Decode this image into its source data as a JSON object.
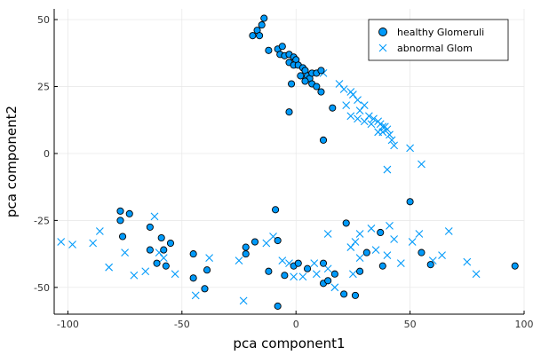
{
  "chart_data": {
    "type": "scatter",
    "title": "",
    "xlabel": "pca component1",
    "ylabel": "pca component2",
    "xlim": [
      -106,
      100
    ],
    "ylim": [
      -60,
      54
    ],
    "xticks": [
      -100,
      -50,
      0,
      50,
      100
    ],
    "yticks": [
      -50,
      -25,
      0,
      25,
      50
    ],
    "grid": true,
    "legend_position": "top-right",
    "series": [
      {
        "name": "healthy Glomeruli",
        "marker": "circle",
        "color": "#009AFA",
        "points": [
          [
            -14,
            50.5
          ],
          [
            -15,
            48
          ],
          [
            -17,
            46
          ],
          [
            -16,
            44
          ],
          [
            -19,
            44
          ],
          [
            -12,
            38.5
          ],
          [
            -8,
            39
          ],
          [
            -6,
            40
          ],
          [
            -7,
            37
          ],
          [
            -5,
            36.5
          ],
          [
            -3,
            37
          ],
          [
            -1,
            36
          ],
          [
            0,
            35
          ],
          [
            -3,
            34
          ],
          [
            -1,
            33
          ],
          [
            1,
            33
          ],
          [
            3,
            32
          ],
          [
            4,
            31
          ],
          [
            2,
            29
          ],
          [
            5,
            29
          ],
          [
            6,
            28
          ],
          [
            7,
            30
          ],
          [
            9,
            30
          ],
          [
            11,
            31
          ],
          [
            4,
            27
          ],
          [
            7,
            26
          ],
          [
            9,
            25
          ],
          [
            -2,
            26
          ],
          [
            11,
            23
          ],
          [
            16,
            17
          ],
          [
            -3,
            15.5
          ],
          [
            12,
            5
          ],
          [
            -77,
            -21.5
          ],
          [
            -73,
            -22.5
          ],
          [
            -77,
            -25
          ],
          [
            -76,
            -31
          ],
          [
            -64,
            -27.5
          ],
          [
            -59,
            -31.5
          ],
          [
            -55,
            -33.5
          ],
          [
            -58,
            -36
          ],
          [
            -64,
            -36
          ],
          [
            -61,
            -41
          ],
          [
            -57,
            -42
          ],
          [
            -45,
            -37.5
          ],
          [
            -39,
            -43.5
          ],
          [
            -45,
            -46.5
          ],
          [
            -40,
            -50.5
          ],
          [
            -22,
            -35
          ],
          [
            -18,
            -33
          ],
          [
            -22,
            -37.5
          ],
          [
            -9,
            -21
          ],
          [
            -8,
            -32.5
          ],
          [
            -12,
            -44
          ],
          [
            -5,
            -45.5
          ],
          [
            -1,
            -42
          ],
          [
            1,
            -41
          ],
          [
            -8,
            -57
          ],
          [
            5,
            -43
          ],
          [
            12,
            -41
          ],
          [
            17,
            -45
          ],
          [
            22,
            -26
          ],
          [
            37,
            -29.5
          ],
          [
            12,
            -48.5
          ],
          [
            14,
            -47.5
          ],
          [
            21,
            -52.5
          ],
          [
            26,
            -53
          ],
          [
            28,
            -44
          ],
          [
            31,
            -37
          ],
          [
            38,
            -42
          ],
          [
            50,
            -18
          ],
          [
            55,
            -37
          ],
          [
            59,
            -41.5
          ],
          [
            96,
            -42
          ]
        ]
      },
      {
        "name": "abnormal Glom",
        "marker": "x",
        "color": "#009AFA",
        "points": [
          [
            12,
            30
          ],
          [
            19,
            26
          ],
          [
            21,
            24
          ],
          [
            24,
            23
          ],
          [
            25,
            22
          ],
          [
            27,
            20
          ],
          [
            22,
            18
          ],
          [
            30,
            18
          ],
          [
            28,
            16
          ],
          [
            24,
            14
          ],
          [
            27,
            13
          ],
          [
            32,
            14
          ],
          [
            30,
            12
          ],
          [
            34,
            13
          ],
          [
            36,
            12
          ],
          [
            37,
            11
          ],
          [
            39,
            10
          ],
          [
            38,
            8
          ],
          [
            40,
            9
          ],
          [
            41,
            7
          ],
          [
            42,
            5
          ],
          [
            43,
            3
          ],
          [
            50,
            2
          ],
          [
            55,
            -4
          ],
          [
            40,
            -6
          ],
          [
            38,
            10
          ],
          [
            36,
            8
          ],
          [
            33,
            11
          ],
          [
            -103,
            -33
          ],
          [
            -98,
            -34
          ],
          [
            -89,
            -33.5
          ],
          [
            -86,
            -29
          ],
          [
            -82,
            -42.5
          ],
          [
            -75,
            -37
          ],
          [
            -71,
            -45.5
          ],
          [
            -66,
            -44
          ],
          [
            -62,
            -23.5
          ],
          [
            -60,
            -37
          ],
          [
            -58,
            -39
          ],
          [
            -53,
            -45
          ],
          [
            -38,
            -39
          ],
          [
            -44,
            -53
          ],
          [
            -25,
            -40
          ],
          [
            -23,
            -55
          ],
          [
            -13,
            -33.5
          ],
          [
            -10,
            -31
          ],
          [
            -6,
            -40
          ],
          [
            3,
            -46
          ],
          [
            8,
            -41
          ],
          [
            14,
            -30
          ],
          [
            14,
            -43
          ],
          [
            17,
            -50
          ],
          [
            24,
            -35
          ],
          [
            26,
            -33
          ],
          [
            28,
            -30
          ],
          [
            28,
            -39
          ],
          [
            33,
            -28
          ],
          [
            35,
            -36
          ],
          [
            40,
            -38
          ],
          [
            46,
            -41
          ],
          [
            51,
            -33
          ],
          [
            54,
            -30
          ],
          [
            60,
            -40
          ],
          [
            64,
            -38
          ],
          [
            67,
            -29
          ],
          [
            75,
            -40.5
          ],
          [
            79,
            -45
          ],
          [
            41,
            -27
          ],
          [
            -3,
            -41
          ],
          [
            9,
            -45
          ],
          [
            -1,
            -46
          ],
          [
            25,
            -45
          ],
          [
            43,
            -32
          ]
        ]
      }
    ]
  }
}
